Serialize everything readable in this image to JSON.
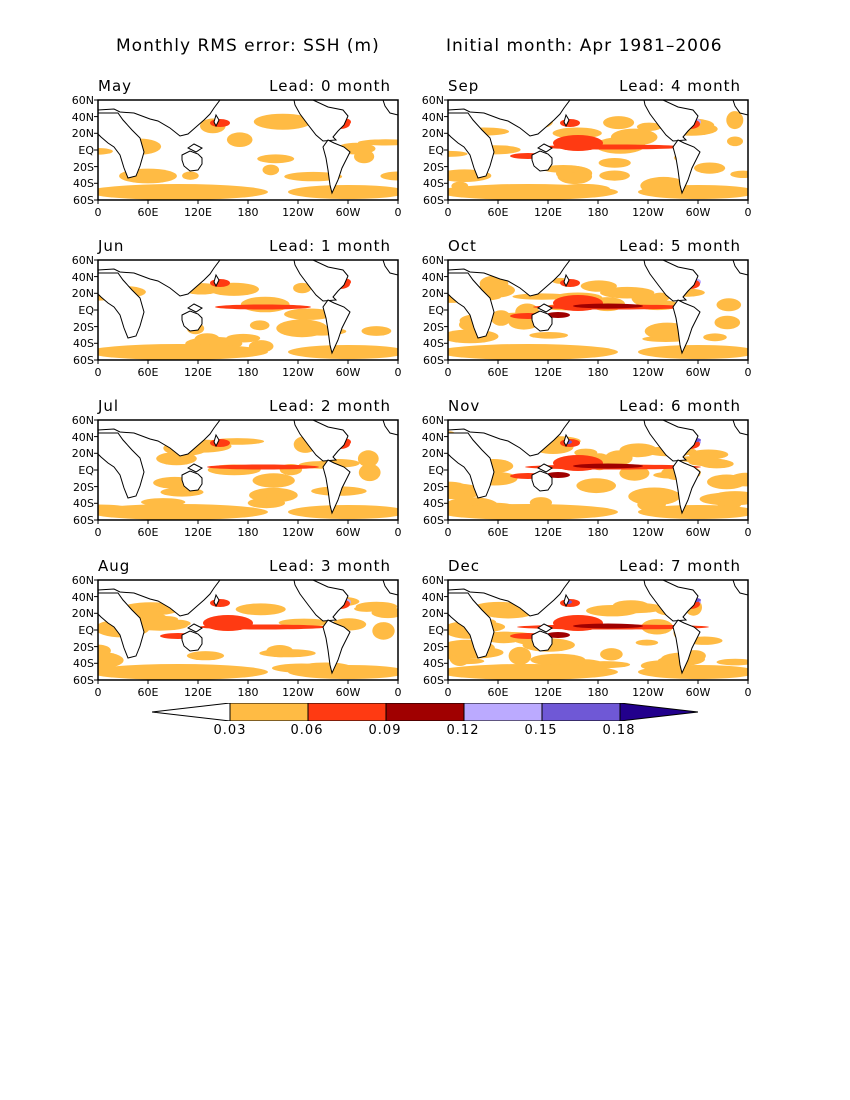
{
  "header": {
    "left": "Monthly RMS error: SSH (m)",
    "right": "Initial month: Apr 1981–2006"
  },
  "axes": {
    "lat_labels": [
      "60N",
      "40N",
      "20N",
      "EQ",
      "20S",
      "40S",
      "60S"
    ],
    "lon_labels": [
      "0",
      "60E",
      "120E",
      "180",
      "120W",
      "60W",
      "0"
    ]
  },
  "panels": [
    {
      "month": "May",
      "lead": "Lead: 0 month",
      "level": 0
    },
    {
      "month": "Sep",
      "lead": "Lead: 4 month",
      "level": 4
    },
    {
      "month": "Jun",
      "lead": "Lead: 1 month",
      "level": 1
    },
    {
      "month": "Oct",
      "lead": "Lead: 5 month",
      "level": 5
    },
    {
      "month": "Jul",
      "lead": "Lead: 2 month",
      "level": 2
    },
    {
      "month": "Nov",
      "lead": "Lead: 6 month",
      "level": 6
    },
    {
      "month": "Aug",
      "lead": "Lead: 3 month",
      "level": 3
    },
    {
      "month": "Dec",
      "lead": "Lead: 7 month",
      "level": 7
    }
  ],
  "colorbar": {
    "labels": [
      "0.03",
      "0.06",
      "0.09",
      "0.12",
      "0.15",
      "0.18"
    ],
    "colors": [
      "#ffffff",
      "#ffbb44",
      "#ff3a12",
      "#a00000",
      "#bbaaff",
      "#6f58d6",
      "#22008c"
    ]
  }
}
